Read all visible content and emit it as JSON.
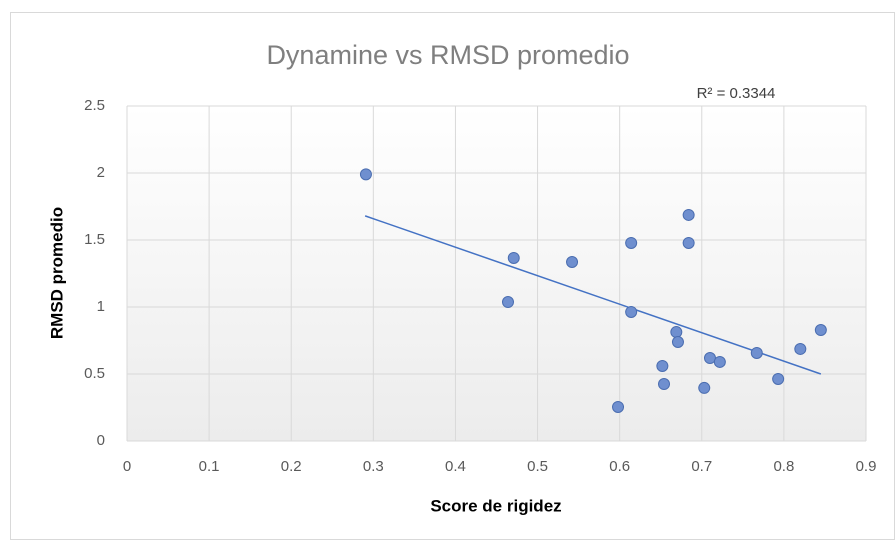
{
  "chart_data": {
    "type": "scatter",
    "title": "Dynamine vs RMSD promedio",
    "x_label": "Score de rigidez",
    "y_label": "RMSD promedio",
    "annotation": "R² = 0.3344",
    "color": "#6f8fcf",
    "trendline_color": "#4472c4",
    "x": [
      0.291,
      0.471,
      0.464,
      0.542,
      0.614,
      0.684,
      0.684,
      0.614,
      0.669,
      0.671,
      0.652,
      0.654,
      0.598,
      0.703,
      0.71,
      0.722,
      0.767,
      0.793,
      0.82,
      0.845
    ],
    "values": [
      1.99,
      1.366,
      1.037,
      1.336,
      1.478,
      1.687,
      1.478,
      0.963,
      0.813,
      0.739,
      0.56,
      0.425,
      0.254,
      0.396,
      0.619,
      0.59,
      0.657,
      0.463,
      0.687,
      0.828
    ],
    "trendline": {
      "x": [
        0.29,
        0.845
      ],
      "y": [
        1.68,
        0.5
      ]
    },
    "xlim": [
      0,
      0.9
    ],
    "xticks": [
      0,
      0.1,
      0.2,
      0.3,
      0.4,
      0.5,
      0.6,
      0.7,
      0.8,
      0.9
    ],
    "ylim": [
      0,
      2.5
    ],
    "yticks": [
      0,
      0.5,
      1,
      1.5,
      2,
      2.5
    ],
    "grid": true
  }
}
